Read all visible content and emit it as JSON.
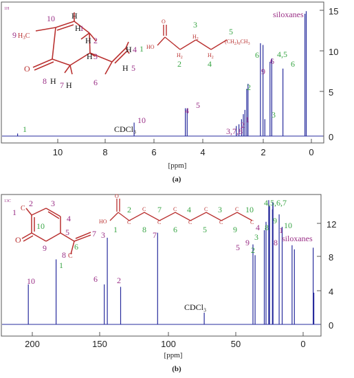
{
  "panels": [
    {
      "nucleus_label": "1H",
      "xlabel": "[ppm]",
      "caption": "(a)",
      "xticks": [
        "10",
        "8",
        "6",
        "4",
        "2",
        "0"
      ],
      "yticks": [
        "0",
        "5",
        "10",
        "15"
      ],
      "structure_labels": {
        "n10": "10",
        "n9": "9",
        "n9b": "H",
        "n9c": "C",
        "n1": "1",
        "n2": "2",
        "n3": "3",
        "n4": "4",
        "n5": "5",
        "n6": "6",
        "n7": "7",
        "n8": "8",
        "o": "O",
        "h10": "H",
        "h1": "H",
        "h2": "H",
        "h3": "H",
        "h4": "H",
        "h5": "H",
        "h7": "H",
        "h8": "H",
        "ho": "HO",
        "h2c": "H",
        "h2c2": "2",
        "c6h13": "(CH2)6",
        "chain1": "1",
        "chain2": "2",
        "chain3": "3",
        "chain4": "4",
        "chain5": "5",
        "chain6": "6"
      },
      "peak_labels": {
        "p1": "1",
        "cdcl3": "CDCl₃",
        "p10": "10",
        "p4": "4",
        "p5": "5",
        "p378": "3,7,8",
        "p2a": "2",
        "p1b": "1",
        "p2b": "2",
        "p3": "3",
        "p9": "9",
        "p6a": "6",
        "p45": "4,5",
        "p6b": "6",
        "siloxanes": "siloxanes"
      }
    },
    {
      "nucleus_label": "13C",
      "xlabel": "[ppm]",
      "caption": "(b)",
      "xticks": [
        "200",
        "150",
        "100",
        "50",
        "0"
      ],
      "yticks": [
        "0",
        "4",
        "8",
        "12"
      ],
      "structure_labels": {
        "n1": "1",
        "n2": "2",
        "n3": "3",
        "n4": "4",
        "n5": "5",
        "n6": "6",
        "n7": "7",
        "n8": "8",
        "n9": "9",
        "n10": "10",
        "c": "C",
        "o": "O",
        "ho": "HO",
        "chain1": "1",
        "chain2": "2",
        "chain8": "8",
        "chain7": "7",
        "chain6": "6",
        "chain4": "4",
        "chain5": "5",
        "chain3": "3",
        "chain9": "9",
        "chain10": "10"
      },
      "peak_labels": {
        "p10": "10",
        "p1": "1",
        "p6": "6",
        "p3": "3",
        "p2": "2",
        "p7": "7",
        "cdcl3": "CDCl₃",
        "p5": "5",
        "p9": "9",
        "p2g": "2",
        "p3g": "3",
        "p4": "4",
        "p4567": "4,5,6,7",
        "p8g": "8",
        "p9g": "9",
        "p8": "8",
        "p10g": "10",
        "siloxanes": "siloxanes"
      }
    }
  ],
  "chart_data": [
    {
      "type": "line",
      "title": "",
      "xlabel": "[ppm]",
      "ylabel": "",
      "xlim": [
        11.7,
        -0.7
      ],
      "ylim": [
        -1,
        15.8
      ],
      "grid": false,
      "x": [
        11.1,
        6.6,
        4.62,
        4.55,
        2.65,
        2.55,
        2.45,
        2.38,
        2.32,
        2.25,
        2.2,
        1.72,
        1.62,
        1.55,
        1.35,
        1.28,
        0.85,
        0.0,
        -0.05
      ],
      "series": [
        {
          "values": [
            0.3,
            1.6,
            3.3,
            3.3,
            1.2,
            1.4,
            2.0,
            2.6,
            3.1,
            5.6,
            6.2,
            11.0,
            10.8,
            2.0,
            8.8,
            9.2,
            8.0,
            14.5,
            14.8
          ]
        }
      ]
    },
    {
      "type": "line",
      "title": "",
      "xlabel": "[ppm]",
      "ylabel": "",
      "xlim": [
        218,
        -4
      ],
      "ylim": [
        -0.8,
        15.5
      ],
      "grid": false,
      "x": [
        199.7,
        180.3,
        146.7,
        144.6,
        135.3,
        109.5,
        77.0,
        43.0,
        41.5,
        35.1,
        33.9,
        32.0,
        31.4,
        29.4,
        29.2,
        29.0,
        24.7,
        22.6,
        15.7,
        14.1,
        1.0,
        0.5
      ],
      "series": [
        {
          "values": [
            4.8,
            7.8,
            4.8,
            10.4,
            4.5,
            11.0,
            1.4,
            9.6,
            8.3,
            11.3,
            12.3,
            14.9,
            14.2,
            13.8,
            14.7,
            14.5,
            13.2,
            11.7,
            9.5,
            9.0,
            9.2,
            3.8
          ]
        }
      ]
    }
  ]
}
